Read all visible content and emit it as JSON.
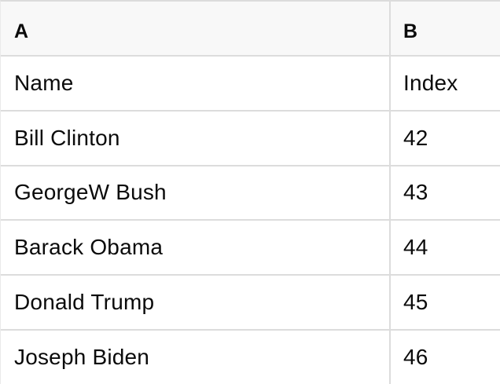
{
  "sheet": {
    "column_headers": [
      "A",
      "B"
    ],
    "rows": [
      {
        "a": "Name",
        "b": "Index"
      },
      {
        "a": "Bill Clinton",
        "b": "42"
      },
      {
        "a": "GeorgeW Bush",
        "b": "43"
      },
      {
        "a": "Barack Obama",
        "b": "44"
      },
      {
        "a": "Donald Trump",
        "b": "45"
      },
      {
        "a": "Joseph Biden",
        "b": "46"
      }
    ],
    "colors": {
      "header_bg": "#f8f8f8",
      "border": "#dcdcdc",
      "text": "#0b0b0b",
      "row_bg": "#ffffff"
    }
  }
}
